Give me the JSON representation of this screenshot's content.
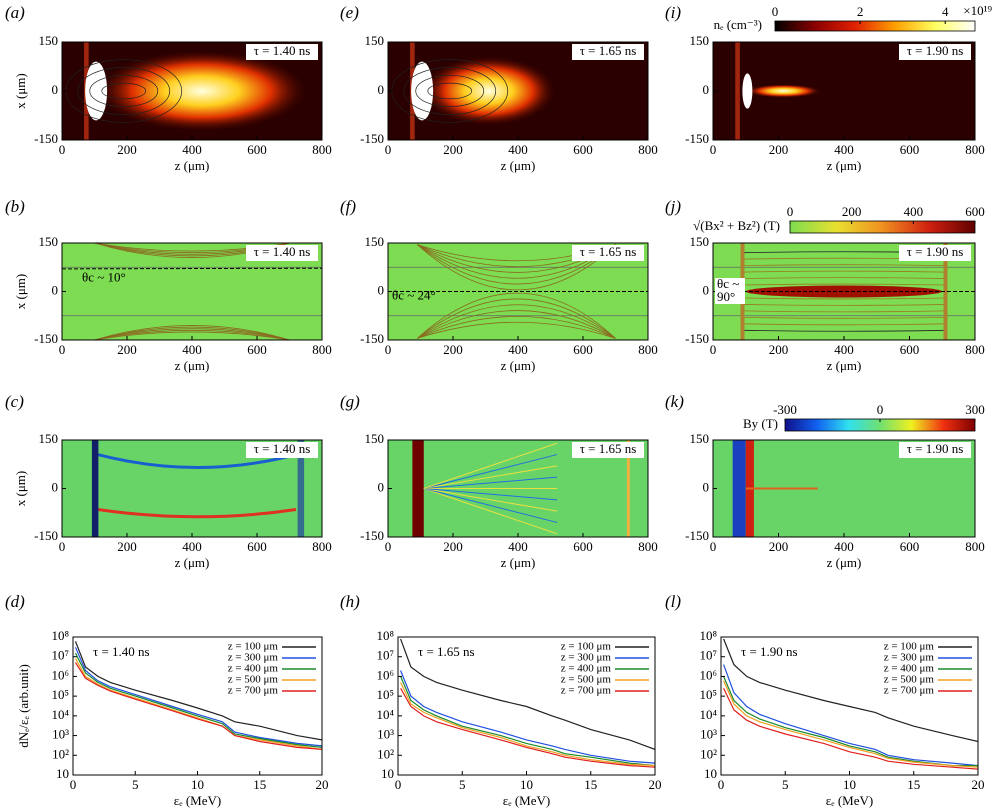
{
  "chart_data": [
    {
      "type": "heatmap",
      "panel_label": "(a)",
      "annotation": "τ = 1.40 ns",
      "colormap": "hot",
      "xlabel": "z (μm)",
      "ylabel": "x (μm)",
      "xlim": [
        0,
        800
      ],
      "xticks": [
        0,
        200,
        400,
        600,
        800
      ],
      "ylim": [
        -150,
        150
      ],
      "yticks": [
        -150,
        0,
        150
      ]
    },
    {
      "type": "heatmap",
      "panel_label": "(b)",
      "annotation": "τ = 1.40 ns",
      "colormap": "ygr",
      "angle_label": [
        "θc ~ 10°"
      ],
      "xlabel": "z (μm)",
      "ylabel": "x (μm)",
      "xlim": [
        0,
        800
      ],
      "xticks": [
        0,
        200,
        400,
        600,
        800
      ],
      "ylim": [
        -150,
        150
      ],
      "yticks": [
        -150,
        0,
        150
      ]
    },
    {
      "type": "heatmap",
      "panel_label": "(c)",
      "annotation": "τ = 1.40 ns",
      "colormap": "jet",
      "xlabel": "z (μm)",
      "ylabel": "x (μm)",
      "xlim": [
        0,
        800
      ],
      "xticks": [
        0,
        200,
        400,
        600,
        800
      ],
      "ylim": [
        -150,
        150
      ],
      "yticks": [
        -150,
        0,
        150
      ]
    },
    {
      "type": "line",
      "panel_label": "(d)",
      "annotation": "τ = 1.40 ns",
      "xlabel": "εₑ (MeV)",
      "ylabel": "dNₑ/εₑ (arb.unit)",
      "log": true,
      "xlim": [
        0,
        20
      ],
      "xticks": [
        0,
        5,
        10,
        15,
        20
      ],
      "ylim": [
        10,
        100000000
      ],
      "yticks": [
        10,
        {
          "value": 100,
          "label": "10²"
        },
        {
          "value": 1000,
          "label": "10³"
        },
        {
          "value": 10000,
          "label": "10⁴"
        },
        {
          "value": 100000,
          "label": "10⁵"
        },
        {
          "value": 1000000,
          "label": "10⁶"
        },
        {
          "value": 10000000,
          "label": "10⁷"
        },
        {
          "value": 100000000,
          "label": "10⁸"
        }
      ],
      "x": [
        0.2,
        1,
        2,
        3,
        5,
        8,
        10,
        12,
        13,
        15,
        18,
        20
      ],
      "series": [
        {
          "name": "z = 100 μm",
          "color": "#222222",
          "values": [
            60000000,
            3000000,
            1000000,
            500000,
            200000,
            60000,
            25000,
            10000,
            5000,
            3000,
            1000,
            600
          ]
        },
        {
          "name": "z = 300 μm",
          "color": "#2050e0",
          "values": [
            30000000,
            2000000,
            600000,
            300000,
            120000,
            30000,
            12000,
            5000,
            1500,
            800,
            400,
            300
          ]
        },
        {
          "name": "z = 400 μm",
          "color": "#1a8a2a",
          "values": [
            15000000,
            1500000,
            500000,
            250000,
            100000,
            25000,
            10000,
            4000,
            1200,
            700,
            350,
            250
          ]
        },
        {
          "name": "z = 500 μm",
          "color": "#f0a020",
          "values": [
            8000000,
            1000000,
            400000,
            200000,
            80000,
            20000,
            8000,
            3000,
            1000,
            600,
            300,
            200
          ]
        },
        {
          "name": "z = 700 μm",
          "color": "#e02020",
          "values": [
            5000000,
            800000,
            350000,
            180000,
            70000,
            18000,
            7000,
            3000,
            1000,
            500,
            250,
            200
          ]
        }
      ]
    },
    {
      "type": "heatmap",
      "panel_label": "(e)",
      "annotation": "τ = 1.65 ns",
      "colormap": "hot",
      "xlabel": "z (μm)",
      "xlim": [
        0,
        800
      ],
      "xticks": [
        0,
        200,
        400,
        600,
        800
      ],
      "ylim": [
        -150,
        150
      ],
      "yticks": [
        -150,
        0,
        150
      ]
    },
    {
      "type": "heatmap",
      "panel_label": "(f)",
      "annotation": "τ = 1.65 ns",
      "colormap": "ygr",
      "angle_label": [
        "θc ~ 24°"
      ],
      "xlabel": "z (μm)",
      "xlim": [
        0,
        800
      ],
      "xticks": [
        0,
        200,
        400,
        600,
        800
      ],
      "ylim": [
        -150,
        150
      ],
      "yticks": [
        -150,
        0,
        150
      ]
    },
    {
      "type": "heatmap",
      "panel_label": "(g)",
      "annotation": "τ = 1.65 ns",
      "colormap": "jet",
      "xlabel": "z (μm)",
      "xlim": [
        0,
        800
      ],
      "xticks": [
        0,
        200,
        400,
        600,
        800
      ],
      "ylim": [
        -150,
        150
      ],
      "yticks": [
        -150,
        0,
        150
      ]
    },
    {
      "type": "line",
      "panel_label": "(h)",
      "annotation": "τ = 1.65 ns",
      "xlabel": "εₑ (MeV)",
      "log": true,
      "xlim": [
        0,
        20
      ],
      "xticks": [
        0,
        5,
        10,
        15,
        20
      ],
      "ylim": [
        10,
        100000000
      ],
      "yticks": [
        10,
        {
          "value": 100,
          "label": "10²"
        },
        {
          "value": 1000,
          "label": "10³"
        },
        {
          "value": 10000,
          "label": "10⁴"
        },
        {
          "value": 100000,
          "label": "10⁵"
        },
        {
          "value": 1000000,
          "label": "10⁶"
        },
        {
          "value": 10000000,
          "label": "10⁷"
        },
        {
          "value": 100000000,
          "label": "10⁸"
        }
      ],
      "x": [
        0.2,
        1,
        2,
        3,
        5,
        8,
        10,
        12,
        13,
        15,
        18,
        20
      ],
      "series": [
        {
          "name": "z = 100 μm",
          "color": "#222222",
          "values": [
            80000000,
            3000000,
            1000000,
            500000,
            200000,
            60000,
            30000,
            10000,
            6000,
            2000,
            600,
            200
          ]
        },
        {
          "name": "z = 300 μm",
          "color": "#2050e0",
          "values": [
            2000000,
            100000,
            30000,
            15000,
            5000,
            1500,
            600,
            300,
            200,
            100,
            50,
            40
          ]
        },
        {
          "name": "z = 400 μm",
          "color": "#1a8a2a",
          "values": [
            1000000,
            60000,
            20000,
            10000,
            3000,
            1000,
            400,
            200,
            120,
            80,
            40,
            30
          ]
        },
        {
          "name": "z = 500 μm",
          "color": "#f0a020",
          "values": [
            500000,
            40000,
            15000,
            8000,
            2500,
            800,
            300,
            150,
            100,
            60,
            35,
            30
          ]
        },
        {
          "name": "z = 700 μm",
          "color": "#e02020",
          "values": [
            250000,
            30000,
            10000,
            5000,
            2000,
            600,
            250,
            120,
            80,
            50,
            30,
            25
          ]
        }
      ]
    },
    {
      "type": "heatmap",
      "panel_label": "(i)",
      "annotation": "τ = 1.90 ns",
      "colormap": "hot",
      "xlabel": "z (μm)",
      "xlim": [
        0,
        800
      ],
      "xticks": [
        0,
        200,
        400,
        600,
        800
      ],
      "ylim": [
        -150,
        150
      ],
      "yticks": [
        -150,
        0,
        150
      ],
      "colorbar": {
        "label": "nₑ (cm⁻³)",
        "exponent": "×10¹⁹",
        "lim": [
          0,
          4.7
        ],
        "ticks": [
          0,
          2,
          4
        ],
        "colors": [
          "#000000",
          "#8a0000",
          "#e02000",
          "#ffa000",
          "#ffff60",
          "#ffffff"
        ]
      }
    },
    {
      "type": "heatmap",
      "panel_label": "(j)",
      "annotation": "τ = 1.90 ns",
      "colormap": "ygr",
      "angle_label": [
        "θc ~",
        "90°"
      ],
      "xlabel": "z (μm)",
      "xlim": [
        0,
        800
      ],
      "xticks": [
        0,
        200,
        400,
        600,
        800
      ],
      "ylim": [
        -150,
        150
      ],
      "yticks": [
        -150,
        0,
        150
      ],
      "colorbar": {
        "label": "√(Bx² + Bz²) (T)",
        "lim": [
          0,
          600
        ],
        "ticks": [
          0,
          200,
          400,
          600
        ],
        "colors": [
          "#7ddc50",
          "#e8e030",
          "#f09020",
          "#d02010",
          "#600000"
        ]
      }
    },
    {
      "type": "heatmap",
      "panel_label": "(k)",
      "annotation": "τ = 1.90 ns",
      "colormap": "jet",
      "xlabel": "z (μm)",
      "xlim": [
        0,
        800
      ],
      "xticks": [
        0,
        200,
        400,
        600,
        800
      ],
      "ylim": [
        -150,
        150
      ],
      "yticks": [
        -150,
        0,
        150
      ],
      "colorbar": {
        "label": "By (T)",
        "lim": [
          -300,
          300
        ],
        "ticks": [
          -300,
          0,
          300
        ],
        "colors": [
          "#10108a",
          "#1060f0",
          "#30e0f0",
          "#70e070",
          "#f0f020",
          "#f03010",
          "#800000"
        ]
      }
    },
    {
      "type": "line",
      "panel_label": "(l)",
      "annotation": "τ = 1.90 ns",
      "xlabel": "εₑ (MeV)",
      "log": true,
      "xlim": [
        0,
        20
      ],
      "xticks": [
        0,
        5,
        10,
        15,
        20
      ],
      "ylim": [
        10,
        100000000
      ],
      "yticks": [
        10,
        {
          "value": 100,
          "label": "10²"
        },
        {
          "value": 1000,
          "label": "10³"
        },
        {
          "value": 10000,
          "label": "10⁴"
        },
        {
          "value": 100000,
          "label": "10⁵"
        },
        {
          "value": 1000000,
          "label": "10⁶"
        },
        {
          "value": 10000000,
          "label": "10⁷"
        },
        {
          "value": 100000000,
          "label": "10⁸"
        }
      ],
      "x": [
        0.2,
        1,
        2,
        3,
        5,
        8,
        10,
        12,
        13,
        15,
        18,
        20
      ],
      "series": [
        {
          "name": "z = 100 μm",
          "color": "#222222",
          "values": [
            80000000,
            4000000,
            1000000,
            500000,
            200000,
            60000,
            30000,
            15000,
            8000,
            3000,
            1000,
            500
          ]
        },
        {
          "name": "z = 300 μm",
          "color": "#2050e0",
          "values": [
            4000000,
            150000,
            30000,
            12000,
            4000,
            1000,
            400,
            200,
            100,
            60,
            40,
            30
          ]
        },
        {
          "name": "z = 400 μm",
          "color": "#1a8a2a",
          "values": [
            1000000,
            60000,
            15000,
            7000,
            2500,
            800,
            300,
            150,
            80,
            50,
            30,
            30
          ]
        },
        {
          "name": "z = 500 μm",
          "color": "#f0a020",
          "values": [
            600000,
            40000,
            10000,
            5000,
            2000,
            600,
            250,
            120,
            70,
            45,
            30,
            25
          ]
        },
        {
          "name": "z = 700 μm",
          "color": "#e02020",
          "values": [
            250000,
            20000,
            6000,
            3000,
            1200,
            400,
            150,
            80,
            50,
            35,
            25,
            20
          ]
        }
      ]
    }
  ]
}
